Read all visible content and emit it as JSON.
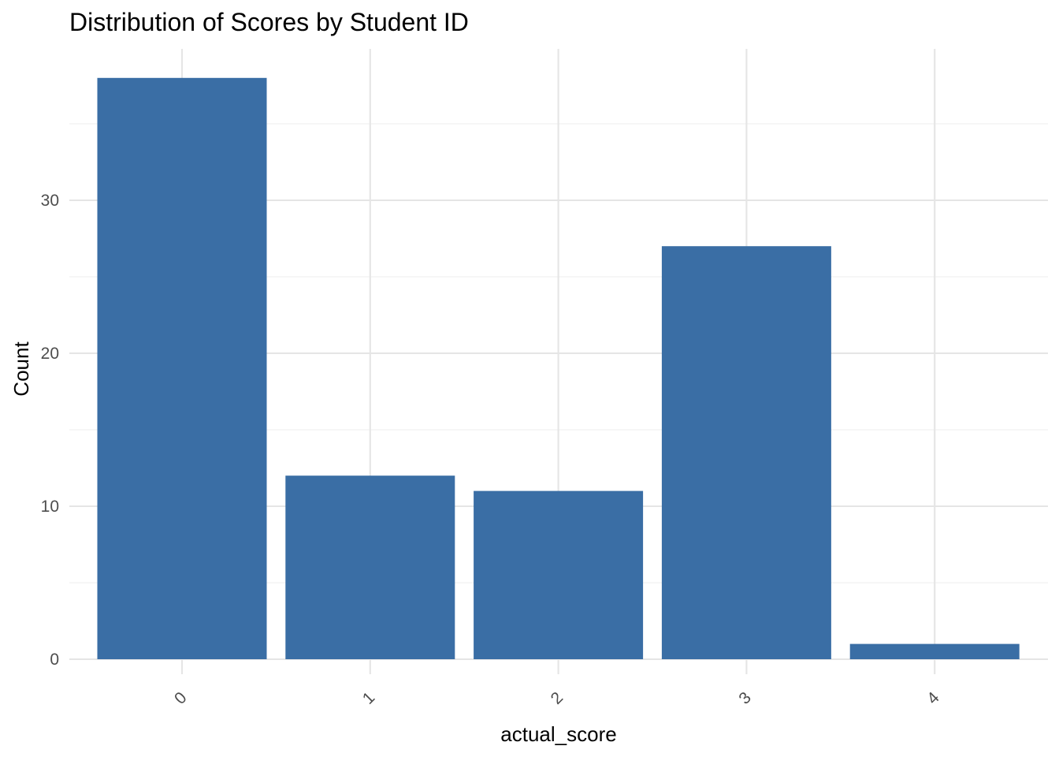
{
  "chart_data": {
    "type": "bar",
    "title": "Distribution of Scores by Student ID",
    "xlabel": "actual_score",
    "ylabel": "Count",
    "categories": [
      "0",
      "1",
      "2",
      "3",
      "4"
    ],
    "values": [
      38,
      12,
      11,
      27,
      1
    ],
    "ylim": [
      0,
      39.9
    ],
    "yticks": [
      0,
      10,
      20,
      30
    ],
    "x_tick_rotation_deg": 45,
    "grid": true,
    "legend": "none",
    "bar_color": "#3A6EA5"
  }
}
